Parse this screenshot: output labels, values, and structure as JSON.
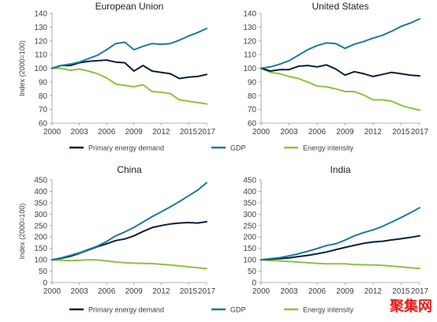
{
  "watermark": "聚集网",
  "legend_rows": [
    [
      "Primary energy demand",
      "GDP",
      "Energy intensity"
    ],
    [
      "Primary energy demand",
      "GDP",
      "Energy intensity"
    ]
  ],
  "chart_data": [
    {
      "type": "line",
      "title": "European Union",
      "ylabel": "Index (2000=100)",
      "ylim": [
        60,
        140
      ],
      "yticks": [
        60,
        70,
        80,
        90,
        100,
        110,
        120,
        130,
        140
      ],
      "xlim": [
        2000,
        2017
      ],
      "xticks": [
        2000,
        2003,
        2006,
        2009,
        2012,
        2015,
        2017
      ],
      "x": [
        2000,
        2001,
        2002,
        2003,
        2004,
        2005,
        2006,
        2007,
        2008,
        2009,
        2010,
        2011,
        2012,
        2013,
        2014,
        2015,
        2016,
        2017
      ],
      "series": [
        {
          "name": "Primary energy demand",
          "color": "#0c1f3a",
          "values": [
            100,
            102,
            102,
            104,
            105,
            105.5,
            106,
            104.5,
            104,
            98,
            102,
            98,
            97,
            96,
            92.5,
            93.5,
            94,
            95.5
          ]
        },
        {
          "name": "GDP",
          "color": "#1a7b9b",
          "values": [
            100,
            102,
            103,
            104.5,
            107,
            109.5,
            113.5,
            118,
            119,
            113.5,
            116,
            118,
            117.5,
            118,
            120.5,
            123.5,
            126,
            129
          ]
        },
        {
          "name": "Energy intensity",
          "color": "#8ac43f",
          "values": [
            100,
            100,
            98.5,
            99.5,
            98,
            96,
            93,
            88.5,
            87.5,
            86.5,
            88,
            83,
            82.5,
            81.5,
            77,
            76,
            75,
            74
          ]
        }
      ]
    },
    {
      "type": "line",
      "title": "United States",
      "ylabel": "",
      "ylim": [
        60,
        140
      ],
      "yticks": [
        60,
        70,
        80,
        90,
        100,
        110,
        120,
        130,
        140
      ],
      "xlim": [
        2000,
        2017
      ],
      "xticks": [
        2000,
        2003,
        2006,
        2009,
        2012,
        2015,
        2017
      ],
      "x": [
        2000,
        2001,
        2002,
        2003,
        2004,
        2005,
        2006,
        2007,
        2008,
        2009,
        2010,
        2011,
        2012,
        2013,
        2014,
        2015,
        2016,
        2017
      ],
      "series": [
        {
          "name": "Primary energy demand",
          "color": "#0c1f3a",
          "values": [
            100,
            98,
            99,
            99,
            101.5,
            102,
            101,
            102.5,
            99.5,
            95,
            97.5,
            96,
            94,
            95.5,
            97,
            96,
            95,
            94.5
          ]
        },
        {
          "name": "GDP",
          "color": "#1a7b9b",
          "values": [
            100,
            101,
            103,
            105.5,
            109.5,
            113.5,
            116.5,
            118.5,
            118,
            114.5,
            117.5,
            119.5,
            122,
            124,
            127,
            130.5,
            133,
            136
          ]
        },
        {
          "name": "Energy intensity",
          "color": "#8ac43f",
          "values": [
            100,
            97,
            96,
            94,
            92.5,
            90,
            87,
            86.5,
            85,
            83,
            83,
            80.5,
            77,
            77,
            76,
            73,
            71,
            69.5
          ]
        }
      ]
    },
    {
      "type": "line",
      "title": "China",
      "ylabel": "Index (2000=100)",
      "ylim": [
        0,
        450
      ],
      "yticks": [
        0,
        50,
        100,
        150,
        200,
        250,
        300,
        350,
        400,
        450
      ],
      "xlim": [
        2000,
        2017
      ],
      "xticks": [
        2000,
        2003,
        2006,
        2009,
        2012,
        2015,
        2017
      ],
      "x": [
        2000,
        2001,
        2002,
        2003,
        2004,
        2005,
        2006,
        2007,
        2008,
        2009,
        2010,
        2011,
        2012,
        2013,
        2014,
        2015,
        2016,
        2017
      ],
      "series": [
        {
          "name": "Primary energy demand",
          "color": "#0c1f3a",
          "values": [
            100,
            106,
            115,
            128,
            143,
            157,
            170,
            184,
            191,
            205,
            224,
            241,
            250,
            257,
            261,
            263,
            261,
            267
          ]
        },
        {
          "name": "GDP",
          "color": "#1a7b9b",
          "values": [
            100,
            108,
            119,
            130,
            145,
            160,
            180,
            205,
            222,
            242,
            265,
            289,
            310,
            332,
            355,
            380,
            405,
            438
          ]
        },
        {
          "name": "Energy intensity",
          "color": "#8ac43f",
          "values": [
            100,
            98,
            96,
            98,
            100,
            99,
            95,
            90,
            87,
            85,
            84,
            83,
            80,
            77,
            73,
            69,
            65,
            61
          ]
        }
      ]
    },
    {
      "type": "line",
      "title": "India",
      "ylabel": "",
      "ylim": [
        0,
        450
      ],
      "yticks": [
        0,
        50,
        100,
        150,
        200,
        250,
        300,
        350,
        400,
        450
      ],
      "xlim": [
        2000,
        2017
      ],
      "xticks": [
        2000,
        2003,
        2006,
        2009,
        2012,
        2015,
        2017
      ],
      "x": [
        2000,
        2001,
        2002,
        2003,
        2004,
        2005,
        2006,
        2007,
        2008,
        2009,
        2010,
        2011,
        2012,
        2013,
        2014,
        2015,
        2016,
        2017
      ],
      "series": [
        {
          "name": "Primary energy demand",
          "color": "#0c1f3a",
          "values": [
            100,
            102,
            105,
            108,
            114,
            119,
            126,
            134,
            144,
            154,
            163,
            172,
            178,
            181,
            187,
            192,
            198,
            205
          ]
        },
        {
          "name": "GDP",
          "color": "#1a7b9b",
          "values": [
            100,
            105,
            109,
            117,
            126,
            137,
            149,
            162,
            170,
            186,
            205,
            219,
            231,
            246,
            265,
            285,
            306,
            328
          ]
        },
        {
          "name": "Energy intensity",
          "color": "#8ac43f",
          "values": [
            100,
            97,
            95,
            92,
            90,
            87,
            84,
            82,
            82,
            82,
            79,
            78,
            77,
            75,
            72,
            69,
            65,
            62
          ]
        }
      ]
    }
  ]
}
